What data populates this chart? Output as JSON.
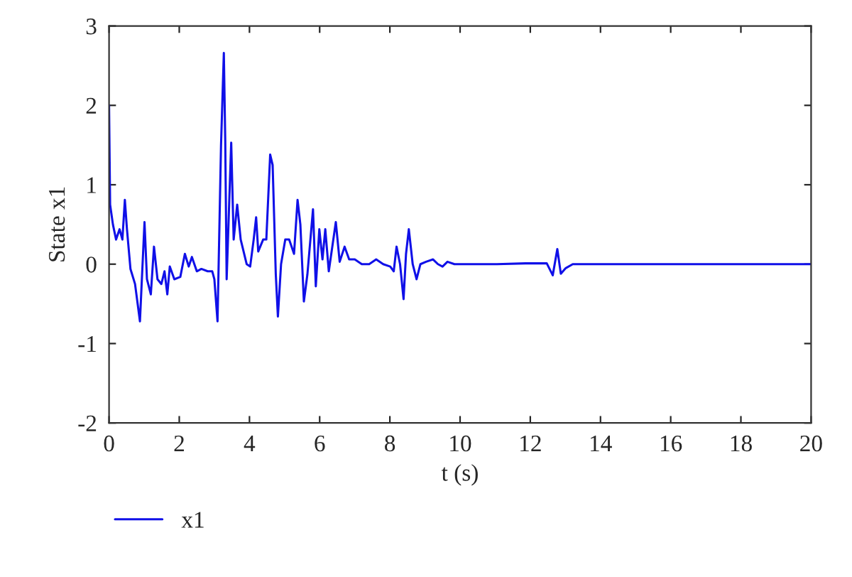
{
  "chart_data": {
    "type": "line",
    "xlabel": "t (s)",
    "ylabel": "State x1",
    "xlim": [
      0,
      20
    ],
    "ylim": [
      -2,
      3
    ],
    "xticks": [
      0,
      2,
      4,
      6,
      8,
      10,
      12,
      14,
      16,
      18,
      20
    ],
    "yticks": [
      -2,
      -1,
      0,
      1,
      2,
      3
    ],
    "grid": false,
    "legend": "bottom left",
    "marker": "none",
    "line_style": "solid",
    "series": [
      {
        "name": "x1",
        "color": "#1010e8",
        "x": [
          0,
          0.03,
          0.11,
          0.2,
          0.3,
          0.38,
          0.45,
          0.51,
          0.61,
          0.74,
          0.88,
          1.01,
          1.08,
          1.19,
          1.28,
          1.38,
          1.49,
          1.58,
          1.66,
          1.73,
          1.86,
          2.03,
          2.16,
          2.27,
          2.36,
          2.5,
          2.63,
          2.81,
          2.94,
          3.0,
          3.09,
          3.19,
          3.27,
          3.31,
          3.35,
          3.48,
          3.55,
          3.65,
          3.75,
          3.92,
          4.02,
          4.12,
          4.19,
          4.25,
          4.39,
          4.48,
          4.59,
          4.66,
          4.75,
          4.81,
          4.9,
          5.02,
          5.13,
          5.27,
          5.37,
          5.45,
          5.55,
          5.65,
          5.81,
          5.89,
          5.99,
          6.08,
          6.16,
          6.26,
          6.46,
          6.57,
          6.71,
          6.84,
          7.0,
          7.2,
          7.41,
          7.61,
          7.81,
          8.01,
          8.11,
          8.19,
          8.29,
          8.39,
          8.46,
          8.54,
          8.65,
          8.76,
          8.87,
          9.03,
          9.23,
          9.37,
          9.5,
          9.64,
          9.84,
          10.1,
          10.37,
          10.64,
          11.05,
          11.86,
          12.47,
          12.64,
          12.77,
          12.87,
          13.01,
          13.21,
          20
        ],
        "values": [
          2.0,
          0.75,
          0.5,
          0.31,
          0.44,
          0.31,
          0.81,
          0.44,
          -0.06,
          -0.25,
          -0.72,
          0.53,
          -0.19,
          -0.38,
          0.22,
          -0.19,
          -0.25,
          -0.09,
          -0.38,
          -0.03,
          -0.19,
          -0.16,
          0.13,
          -0.03,
          0.09,
          -0.09,
          -0.06,
          -0.09,
          -0.09,
          -0.19,
          -0.72,
          1.5,
          2.66,
          1.56,
          -0.19,
          1.53,
          0.31,
          0.75,
          0.31,
          0.0,
          -0.03,
          0.31,
          0.59,
          0.16,
          0.31,
          0.31,
          1.38,
          1.25,
          -0.13,
          -0.66,
          0.0,
          0.31,
          0.31,
          0.13,
          0.81,
          0.5,
          -0.47,
          -0.13,
          0.69,
          -0.28,
          0.44,
          0.06,
          0.44,
          -0.09,
          0.53,
          0.03,
          0.22,
          0.06,
          0.06,
          0.0,
          0.0,
          0.06,
          0.0,
          -0.03,
          -0.09,
          0.22,
          0.0,
          -0.44,
          0.13,
          0.44,
          0.0,
          -0.19,
          0.0,
          0.03,
          0.06,
          0.0,
          -0.03,
          0.03,
          0.0,
          0.0,
          0.0,
          0.0,
          0.0,
          0.01,
          0.01,
          -0.14,
          0.19,
          -0.12,
          -0.05,
          0.0,
          0.0
        ]
      }
    ]
  }
}
